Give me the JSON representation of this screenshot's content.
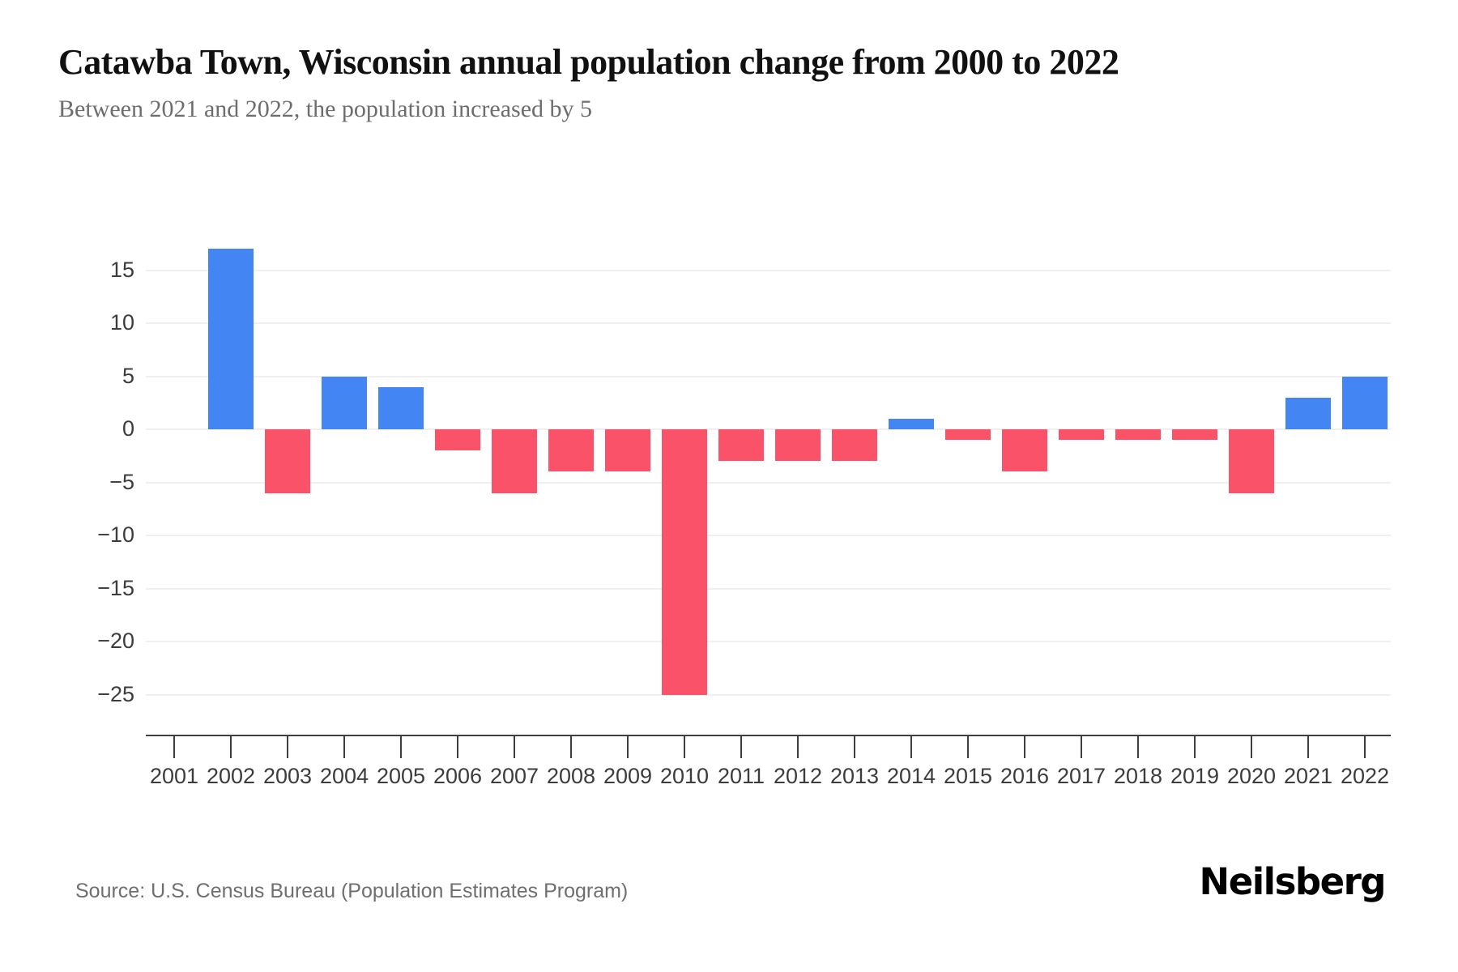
{
  "header": {
    "title": "Catawba Town, Wisconsin annual population change from 2000 to 2022",
    "subtitle": "Between 2021 and 2022, the population increased by 5"
  },
  "chart_data": {
    "type": "bar",
    "title": "Catawba Town, Wisconsin annual population change from 2000 to 2022",
    "xlabel": "",
    "ylabel": "",
    "categories": [
      "2001",
      "2002",
      "2003",
      "2004",
      "2005",
      "2006",
      "2007",
      "2008",
      "2009",
      "2010",
      "2011",
      "2012",
      "2013",
      "2014",
      "2015",
      "2016",
      "2017",
      "2018",
      "2019",
      "2020",
      "2021",
      "2022"
    ],
    "values": [
      0,
      17,
      -6,
      5,
      4,
      -2,
      -6,
      -4,
      -4,
      -25,
      -3,
      -3,
      -3,
      1,
      -1,
      -4,
      -1,
      -1,
      -1,
      -6,
      3,
      5
    ],
    "yticks": [
      15,
      10,
      5,
      0,
      -5,
      -10,
      -15,
      -20,
      -25
    ],
    "ylim": [
      -27,
      18.5
    ],
    "grid": true,
    "legend": "none",
    "positive_color": "#4385F3",
    "negative_color": "#FA5268",
    "gridline_color": "#f0f0f0",
    "axis_color": "#3f3f3f",
    "tick_label_color": "#3c3c3c"
  },
  "footer": {
    "source": "Source: U.S. Census Bureau (Population Estimates Program)",
    "brand": "Neilsberg"
  }
}
